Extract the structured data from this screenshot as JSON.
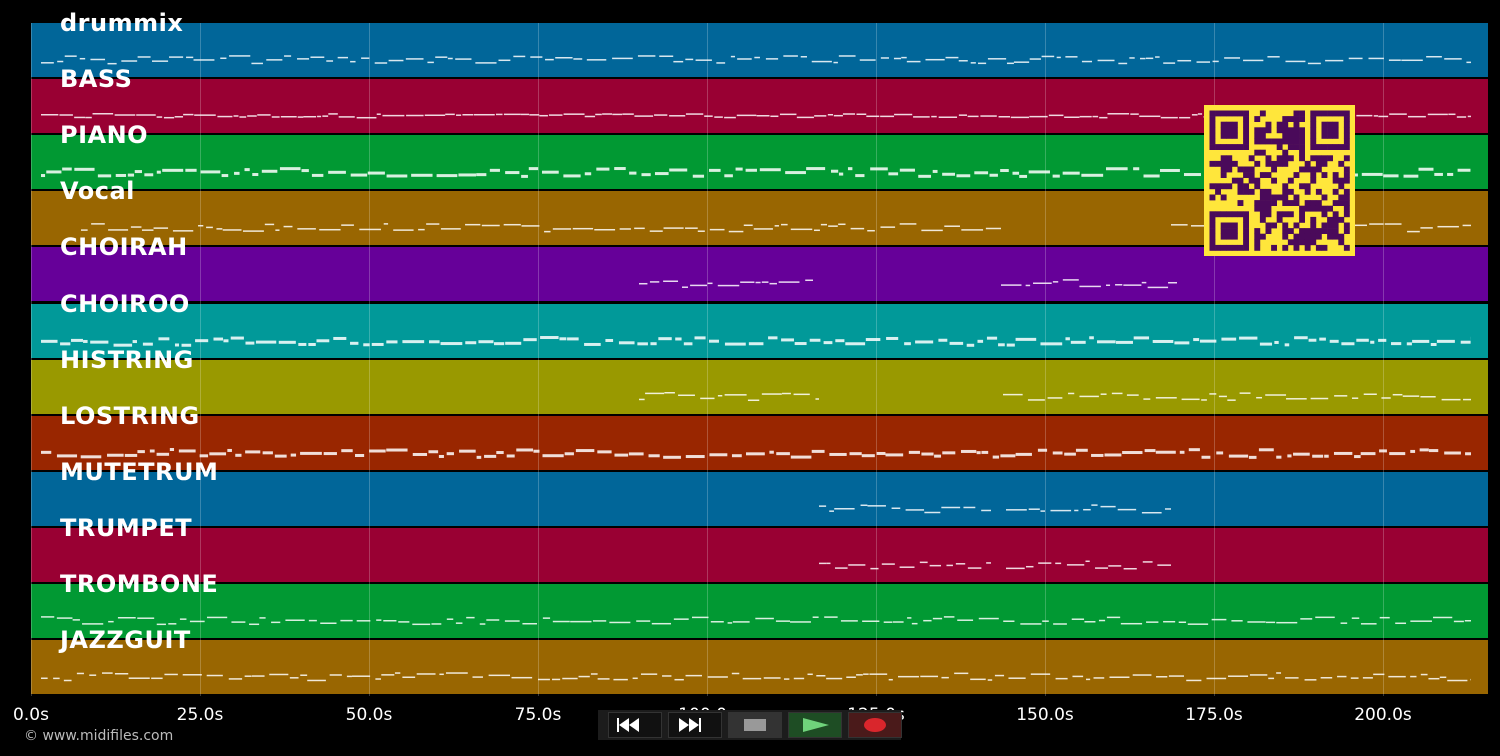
{
  "tracks": [
    {
      "name": "drummix",
      "color": "#016699",
      "pattern": "dense-small"
    },
    {
      "name": "BASS",
      "color": "#990033",
      "pattern": "line"
    },
    {
      "name": "PIANO",
      "color": "#019933",
      "pattern": "dense-blocks"
    },
    {
      "name": "Vocal",
      "color": "#996601",
      "pattern": "phrases"
    },
    {
      "name": "CHOIRAH",
      "color": "#660099",
      "pattern": "two-sections"
    },
    {
      "name": "CHOIROO",
      "color": "#019999",
      "pattern": "long-notes"
    },
    {
      "name": "HISTRING",
      "color": "#999900",
      "pattern": "two-wiggly"
    },
    {
      "name": "LOSTRING",
      "color": "#992600",
      "pattern": "long-notes"
    },
    {
      "name": "MUTETRUM",
      "color": "#016699",
      "pattern": "middle"
    },
    {
      "name": "TRUMPET",
      "color": "#990033",
      "pattern": "middle"
    },
    {
      "name": "TROMBONE",
      "color": "#019933",
      "pattern": "dashes"
    },
    {
      "name": "JAZZGUIT",
      "color": "#996601",
      "pattern": "dense-small"
    }
  ],
  "axis": {
    "ticks": [
      "0.0s",
      "25.0s",
      "50.0s",
      "75.0s",
      "100.0s",
      "125.0s",
      "150.0s",
      "175.0s",
      "200.0s"
    ]
  },
  "footer": {
    "copyright": "© www.midifiles.com"
  },
  "controls": [
    {
      "name": "rewind-button",
      "icon": "rewind-icon"
    },
    {
      "name": "fast-forward-button",
      "icon": "fast-forward-icon"
    },
    {
      "name": "stop-button",
      "icon": "stop-icon"
    },
    {
      "name": "play-button",
      "icon": "play-icon"
    },
    {
      "name": "record-button",
      "icon": "record-icon"
    }
  ],
  "qr_code": {
    "color": "#ffe63b",
    "dark": "#4a0a5a"
  }
}
